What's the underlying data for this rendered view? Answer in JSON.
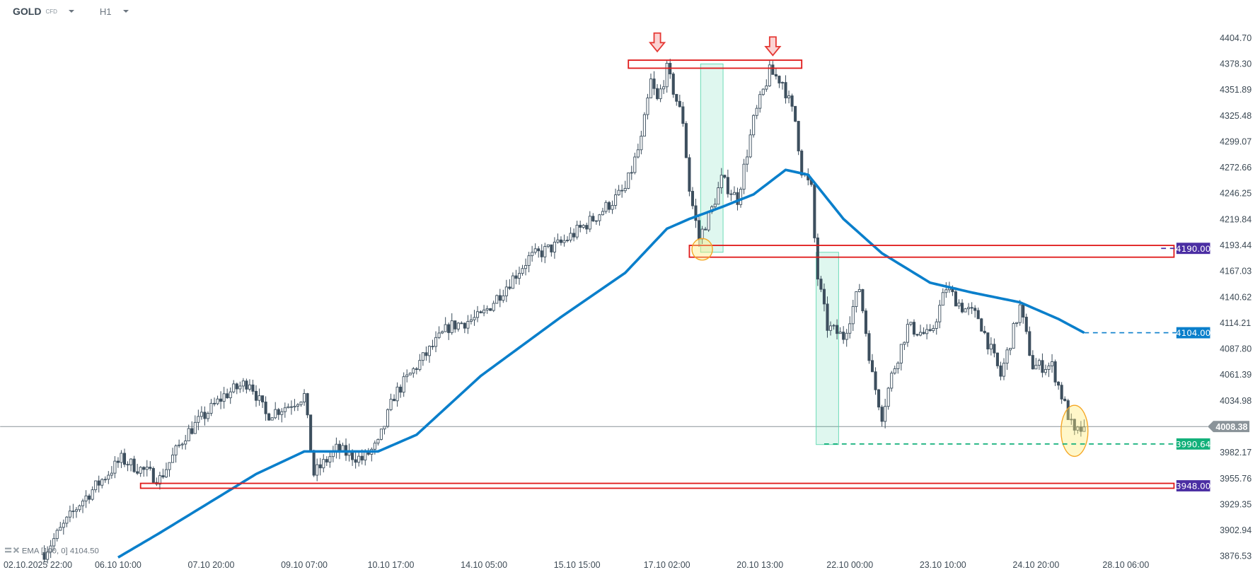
{
  "header": {
    "symbol": "GOLD",
    "instrument_type": "CFD",
    "timeframe": "H1"
  },
  "indicator": {
    "label": "EMA [100, 0]",
    "value": "4104.50"
  },
  "colors": {
    "ema": "#0a7fcb",
    "bear": "#3d4f5e",
    "zone": "#e01b1b",
    "purple": "#4b2ea3",
    "green": "#12b07a",
    "current": "#8a9399"
  },
  "chart_data": {
    "type": "candlestick",
    "symbol": "GOLD",
    "timeframe": "H1",
    "ylim": [
      3876.53,
      4404.7
    ],
    "y_ticks": [
      "4404.70",
      "4378.30",
      "4351.89",
      "4325.48",
      "4299.07",
      "4272.66",
      "4246.25",
      "4219.84",
      "4193.44",
      "4167.03",
      "4140.62",
      "4114.21",
      "4087.80",
      "4061.39",
      "4034.98",
      "3982.17",
      "3955.76",
      "3929.35",
      "3902.94",
      "3876.53"
    ],
    "x_ticks": [
      {
        "bar": -2,
        "label": "02.10.2025  22:00"
      },
      {
        "bar": 23,
        "label": "06.10  10:00"
      },
      {
        "bar": 52,
        "label": "07.10  20:00"
      },
      {
        "bar": 81,
        "label": "09.10  07:00"
      },
      {
        "bar": 108,
        "label": "10.10  17:00"
      },
      {
        "bar": 137,
        "label": "14.10  05:00"
      },
      {
        "bar": 166,
        "label": "15.10  15:00"
      },
      {
        "bar": 194,
        "label": "17.10  02:00"
      },
      {
        "bar": 223,
        "label": "20.10  13:00"
      },
      {
        "bar": 251,
        "label": "22.10  00:00"
      },
      {
        "bar": 280,
        "label": "23.10  10:00"
      },
      {
        "bar": 309,
        "label": "24.10  20:00"
      },
      {
        "bar": 337,
        "label": "28.10  06:00"
      }
    ],
    "price_path": [
      [
        0,
        3880
      ],
      [
        11,
        3930
      ],
      [
        24,
        3975
      ],
      [
        36,
        3955
      ],
      [
        44,
        4000
      ],
      [
        56,
        4040
      ],
      [
        64,
        4055
      ],
      [
        69,
        4020
      ],
      [
        76,
        4030
      ],
      [
        81,
        4040
      ],
      [
        84,
        3960
      ],
      [
        91,
        3985
      ],
      [
        99,
        3975
      ],
      [
        104,
        3990
      ],
      [
        109,
        4040
      ],
      [
        116,
        4070
      ],
      [
        126,
        4110
      ],
      [
        136,
        4120
      ],
      [
        141,
        4140
      ],
      [
        151,
        4180
      ],
      [
        161,
        4195
      ],
      [
        171,
        4220
      ],
      [
        181,
        4250
      ],
      [
        186,
        4300
      ],
      [
        189,
        4360
      ],
      [
        191,
        4340
      ],
      [
        194,
        4372
      ],
      [
        199,
        4320
      ],
      [
        201,
        4250
      ],
      [
        204,
        4200
      ],
      [
        208,
        4230
      ],
      [
        211,
        4260
      ],
      [
        216,
        4240
      ],
      [
        221,
        4320
      ],
      [
        226,
        4370
      ],
      [
        230,
        4360
      ],
      [
        234,
        4320
      ],
      [
        236,
        4270
      ],
      [
        239,
        4250
      ],
      [
        240,
        4200
      ],
      [
        241,
        4160
      ],
      [
        244,
        4110
      ],
      [
        249,
        4100
      ],
      [
        254,
        4150
      ],
      [
        258,
        4060
      ],
      [
        261,
        4020
      ],
      [
        264,
        4060
      ],
      [
        269,
        4110
      ],
      [
        276,
        4100
      ],
      [
        281,
        4150
      ],
      [
        286,
        4130
      ],
      [
        291,
        4120
      ],
      [
        298,
        4060
      ],
      [
        304,
        4130
      ],
      [
        308,
        4070
      ],
      [
        314,
        4070
      ],
      [
        318,
        4030
      ],
      [
        321,
        4000
      ],
      [
        324,
        4008
      ]
    ],
    "ema_path": [
      [
        23,
        3875
      ],
      [
        36,
        3900
      ],
      [
        51,
        3930
      ],
      [
        66,
        3960
      ],
      [
        81,
        3983
      ],
      [
        104,
        3983
      ],
      [
        116,
        4000
      ],
      [
        136,
        4060
      ],
      [
        161,
        4120
      ],
      [
        181,
        4165
      ],
      [
        194,
        4210
      ],
      [
        201,
        4220
      ],
      [
        211,
        4232
      ],
      [
        221,
        4245
      ],
      [
        231,
        4270
      ],
      [
        238,
        4265
      ],
      [
        249,
        4220
      ],
      [
        261,
        4185
      ],
      [
        276,
        4155
      ],
      [
        289,
        4145
      ],
      [
        304,
        4135
      ],
      [
        316,
        4118
      ],
      [
        324,
        4104
      ]
    ],
    "current_price": "4008.38",
    "levels": [
      {
        "price": 4190.0,
        "label": "4190.00",
        "color": "#4b2ea3",
        "from_bar": 348
      },
      {
        "price": 4104.0,
        "label": "4104.00",
        "color": "#0a7fcb",
        "from_bar": 324
      },
      {
        "price": 3990.64,
        "label": "3990.64",
        "color": "#12b07a",
        "from_bar": 243
      },
      {
        "price": 3948.0,
        "label": "3948.00",
        "color": "#4b2ea3",
        "from_bar": 352
      }
    ],
    "zones": [
      {
        "bars": [
          182,
          236
        ],
        "prices": [
          4373.6,
          4381.8
        ]
      },
      {
        "bars": [
          201,
          352
        ],
        "prices": [
          4181,
          4193
        ]
      },
      {
        "bars": [
          30,
          352
        ],
        "prices": [
          3945.5,
          3950.5
        ]
      }
    ],
    "ranges": [
      {
        "bars": [
          204.5,
          211.5
        ],
        "prices": [
          4186,
          4378
        ]
      },
      {
        "bars": [
          240.5,
          247.5
        ],
        "prices": [
          3990,
          4186
        ]
      }
    ],
    "highlights": [
      {
        "bar": 205,
        "price": 4189,
        "rx": 3.2,
        "ry": 11
      },
      {
        "bar": 321,
        "price": 4004,
        "rx": 4.2,
        "ry": 26
      }
    ],
    "arrows": [
      {
        "bar": 191,
        "price": 4398
      },
      {
        "bar": 227,
        "price": 4394
      }
    ]
  }
}
